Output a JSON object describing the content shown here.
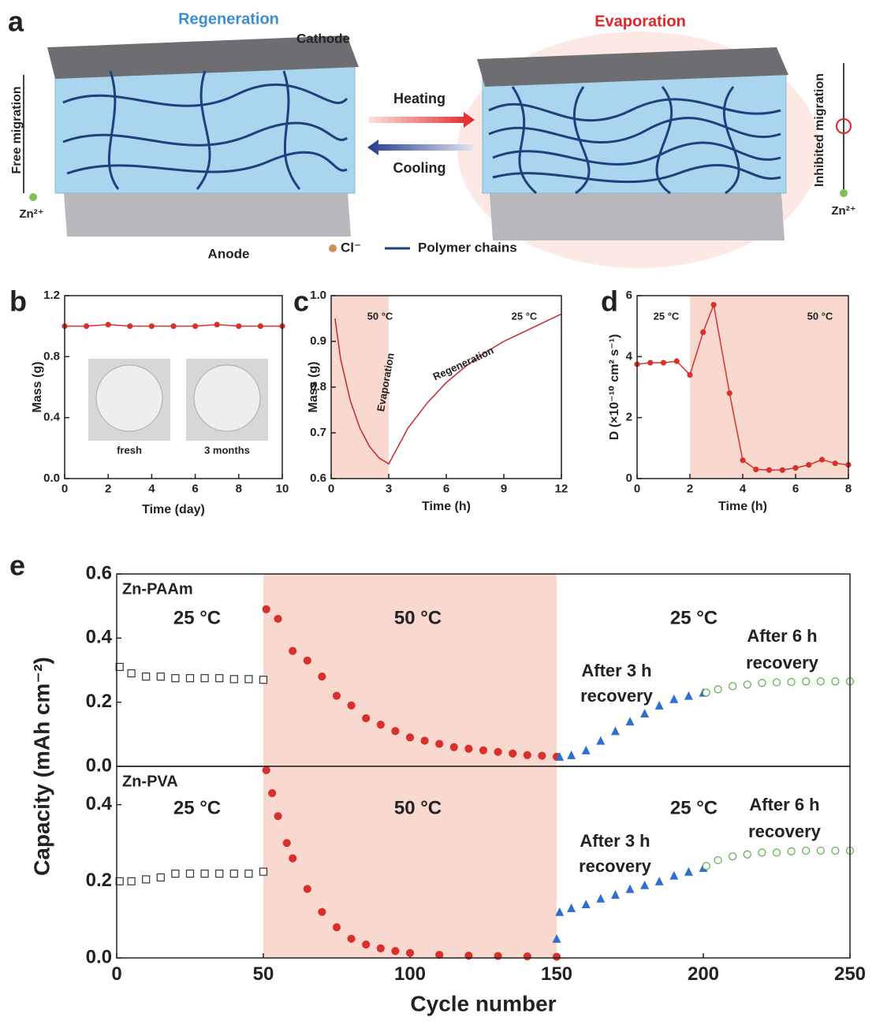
{
  "panel_a": {
    "label": "a",
    "regeneration": "Regeneration",
    "cathode": "Cathode",
    "evaporation": "Evaporation",
    "free_migration": "Free migration",
    "zn_left": "Zn²⁺",
    "heating": "Heating",
    "cooling": "Cooling",
    "inhibited_migration": "Inhibited migration",
    "zn_right": "Zn²⁺",
    "anode": "Anode",
    "chloride": "Cl⁻",
    "polymer_chains": "Polymer chains"
  },
  "chart_data": [
    {
      "type": "line",
      "panel": "b",
      "xlabel": "Time (day)",
      "ylabel": "Mass (g)",
      "xlim": [
        0,
        10
      ],
      "xticks": [
        0,
        2,
        4,
        6,
        8,
        10
      ],
      "ylim": [
        0,
        1.2
      ],
      "yticks": [
        {
          "value": 0,
          "label": "0.0"
        },
        0.4,
        0.8,
        1.2
      ],
      "series": [
        {
          "color": "#d9302c",
          "marker": "circle",
          "filled": true,
          "line": true,
          "x": [
            0,
            1,
            2,
            3,
            4,
            5,
            6,
            7,
            8,
            9,
            10
          ],
          "values": [
            1.0,
            1.0,
            1.01,
            1.0,
            1.0,
            1.0,
            1.0,
            1.01,
            1.0,
            1.0,
            1.0
          ]
        }
      ],
      "annotations": [
        "fresh",
        "3 months"
      ]
    },
    {
      "type": "line",
      "panel": "c",
      "xlabel": "Time (h)",
      "ylabel": "Mass (g)",
      "xlim": [
        0,
        12
      ],
      "xticks": [
        0,
        3,
        6,
        9,
        12
      ],
      "ylim": [
        0.6,
        1.0
      ],
      "yticks": [
        0.6,
        0.7,
        0.8,
        0.9,
        {
          "value": 1,
          "label": "1.0"
        }
      ],
      "shade": [
        0,
        3
      ],
      "shade_color": "#f9d9cf",
      "series": [
        {
          "color": "#c8282c",
          "marker": "none",
          "filled": true,
          "line": true,
          "x": [
            0.2,
            0.5,
            1,
            1.5,
            2,
            2.5,
            3,
            4,
            5,
            6,
            7,
            8,
            9,
            10,
            11,
            12
          ],
          "values": [
            0.95,
            0.86,
            0.77,
            0.71,
            0.67,
            0.645,
            0.632,
            0.71,
            0.765,
            0.81,
            0.845,
            0.875,
            0.9,
            0.92,
            0.94,
            0.96
          ]
        }
      ],
      "annotations": [
        "50 °C",
        "25 °C",
        "Evaporation",
        "Regeneration"
      ]
    },
    {
      "type": "line",
      "panel": "d",
      "xlabel": "Time (h)",
      "ylabel": "D (×10⁻¹⁰ cm² s⁻¹)",
      "xlim": [
        0,
        8
      ],
      "xticks": [
        0,
        2,
        4,
        6,
        8
      ],
      "ylim": [
        0,
        6
      ],
      "yticks": [
        0,
        2,
        4,
        6
      ],
      "shade": [
        2,
        8
      ],
      "shade_color": "#f9d9cf",
      "series": [
        {
          "color": "#d9302c",
          "marker": "circle",
          "filled": true,
          "line": true,
          "x": [
            0,
            0.5,
            1,
            1.5,
            2,
            2.5,
            2.9,
            3.5,
            4,
            4.5,
            5,
            5.5,
            6,
            6.5,
            7,
            7.5,
            8
          ],
          "values": [
            3.75,
            3.8,
            3.8,
            3.85,
            3.4,
            4.8,
            5.7,
            2.8,
            0.6,
            0.3,
            0.28,
            0.28,
            0.35,
            0.45,
            0.62,
            0.5,
            0.45
          ]
        }
      ],
      "annotations": [
        "25 °C",
        "50 °C"
      ]
    },
    {
      "type": "scatter",
      "panel": "e",
      "ylabel": "Capacity (mAh cm⁻²)",
      "xlim": [
        0,
        250
      ],
      "ylim": [
        0,
        0.6
      ],
      "yticks": [
        {
          "value": 0,
          "label": "0.0"
        },
        0.2,
        0.4,
        0.6
      ],
      "shade": [
        50,
        150
      ],
      "shade_color": "#f9d9cf",
      "series": [
        {
          "color": "#333333",
          "marker": "square",
          "filled": false,
          "line": false,
          "x": [
            1,
            5,
            10,
            15,
            20,
            25,
            30,
            35,
            40,
            45,
            50
          ],
          "values": [
            0.31,
            0.29,
            0.28,
            0.28,
            0.275,
            0.275,
            0.275,
            0.275,
            0.272,
            0.272,
            0.27
          ]
        },
        {
          "color": "#d9302c",
          "marker": "circle",
          "filled": true,
          "line": false,
          "x": [
            51,
            55,
            60,
            65,
            70,
            75,
            80,
            85,
            90,
            95,
            100,
            105,
            110,
            115,
            120,
            125,
            130,
            135,
            140,
            145,
            150
          ],
          "values": [
            0.49,
            0.46,
            0.36,
            0.33,
            0.28,
            0.22,
            0.19,
            0.15,
            0.13,
            0.11,
            0.09,
            0.08,
            0.07,
            0.06,
            0.055,
            0.05,
            0.045,
            0.04,
            0.035,
            0.033,
            0.03
          ]
        },
        {
          "color": "#2f6fd0",
          "marker": "triangle",
          "filled": true,
          "line": false,
          "x": [
            151,
            155,
            160,
            165,
            170,
            175,
            180,
            185,
            190,
            195,
            200
          ],
          "values": [
            0.03,
            0.035,
            0.05,
            0.08,
            0.11,
            0.14,
            0.165,
            0.19,
            0.21,
            0.22,
            0.23
          ]
        },
        {
          "color": "#5aab4a",
          "marker": "circle",
          "filled": false,
          "line": false,
          "x": [
            201,
            205,
            210,
            215,
            220,
            225,
            230,
            235,
            240,
            245,
            250
          ],
          "values": [
            0.23,
            0.24,
            0.25,
            0.255,
            0.26,
            0.262,
            0.263,
            0.265,
            0.265,
            0.265,
            0.265
          ]
        }
      ],
      "annotations": [
        "Zn-PAAm",
        "25 °C",
        "50 °C",
        "25 °C",
        "After 3 h",
        "recovery",
        "After 6 h",
        "recovery"
      ]
    },
    {
      "type": "scatter",
      "xlabel": "Cycle number",
      "xlim": [
        0,
        250
      ],
      "xticks": [
        0,
        50,
        100,
        150,
        200,
        250
      ],
      "ylim": [
        0,
        0.5
      ],
      "yticks": [
        {
          "value": 0,
          "label": "0.0"
        },
        0.2,
        0.4
      ],
      "shade": [
        50,
        150
      ],
      "shade_color": "#f9d9cf",
      "series": [
        {
          "color": "#333333",
          "marker": "square",
          "filled": false,
          "line": false,
          "x": [
            1,
            5,
            10,
            15,
            20,
            25,
            30,
            35,
            40,
            45,
            50
          ],
          "values": [
            0.2,
            0.2,
            0.205,
            0.21,
            0.22,
            0.22,
            0.22,
            0.22,
            0.22,
            0.22,
            0.225
          ]
        },
        {
          "color": "#d9302c",
          "marker": "circle",
          "filled": true,
          "line": false,
          "x": [
            51,
            53,
            55,
            58,
            60,
            65,
            70,
            75,
            80,
            85,
            90,
            95,
            100,
            110,
            120,
            130,
            140,
            150
          ],
          "values": [
            0.49,
            0.43,
            0.37,
            0.3,
            0.26,
            0.18,
            0.12,
            0.08,
            0.05,
            0.035,
            0.025,
            0.018,
            0.013,
            0.008,
            0.006,
            0.005,
            0.004,
            0.003
          ]
        },
        {
          "color": "#2f6fd0",
          "marker": "triangle",
          "filled": true,
          "line": false,
          "x": [
            150,
            151,
            155,
            160,
            165,
            170,
            175,
            180,
            185,
            190,
            195,
            200
          ],
          "values": [
            0.05,
            0.12,
            0.13,
            0.14,
            0.155,
            0.165,
            0.18,
            0.19,
            0.2,
            0.215,
            0.225,
            0.235
          ]
        },
        {
          "color": "#5aab4a",
          "marker": "circle",
          "filled": false,
          "line": false,
          "x": [
            201,
            205,
            210,
            215,
            220,
            225,
            230,
            235,
            240,
            245,
            250
          ],
          "values": [
            0.24,
            0.255,
            0.265,
            0.27,
            0.275,
            0.275,
            0.278,
            0.28,
            0.28,
            0.28,
            0.28
          ]
        }
      ],
      "annotations": [
        "Zn-PVA",
        "25 °C",
        "50 °C",
        "25 °C",
        "After 3 h",
        "recovery",
        "After 6 h",
        "recovery"
      ]
    }
  ]
}
